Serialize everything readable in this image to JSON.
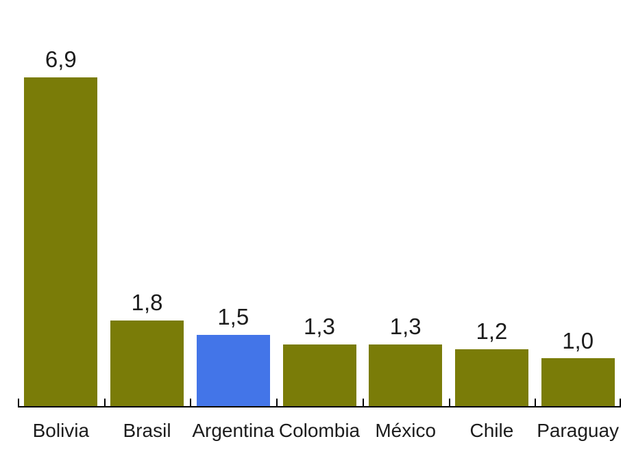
{
  "chart_data": {
    "type": "bar",
    "categories": [
      "Bolivia",
      "Brasil",
      "Argentina",
      "Colombia",
      "México",
      "Chile",
      "Paraguay"
    ],
    "values": [
      6.9,
      1.8,
      1.5,
      1.3,
      1.3,
      1.2,
      1.0
    ],
    "value_labels": [
      "6,9",
      "1,8",
      "1,5",
      "1,3",
      "1,3",
      "1,2",
      "1,0"
    ],
    "bar_colors": [
      "#7a7c08",
      "#7a7c08",
      "#4375e8",
      "#7a7c08",
      "#7a7c08",
      "#7a7c08",
      "#7a7c08"
    ],
    "highlight_index": 2,
    "highlight_category": "Argentina",
    "default_bar_color": "#7a7c08",
    "highlight_color": "#4375e8",
    "title": "",
    "xlabel": "",
    "ylabel": "",
    "ylim": [
      0,
      6.9
    ],
    "grid": false,
    "legend": null,
    "y_axis_visible": false,
    "x_axis_line_color": "#000000",
    "tick_color": "#000000",
    "label_color": "#1c1c1c",
    "background_color": "#ffffff",
    "decimal_separator": ","
  }
}
